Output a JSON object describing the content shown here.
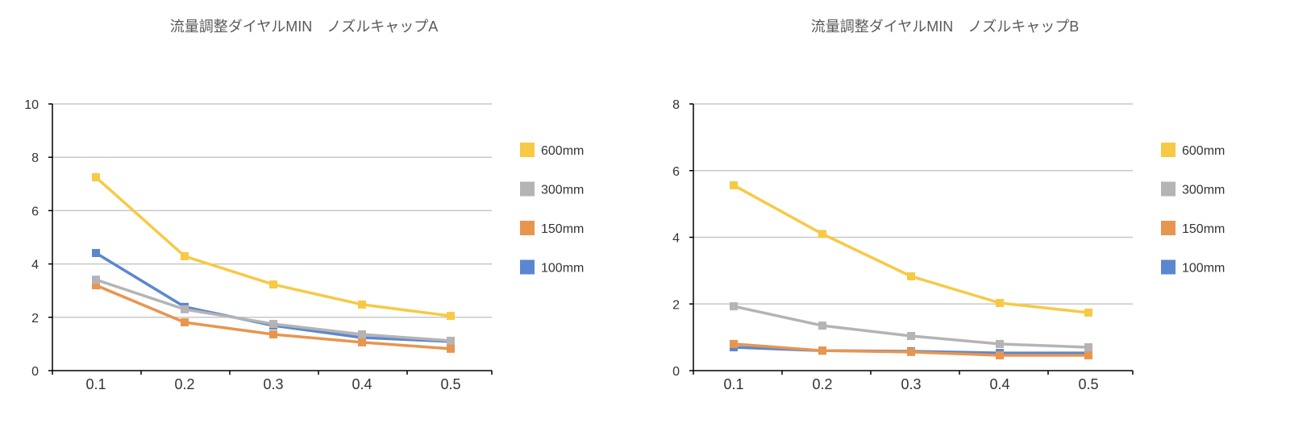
{
  "chart_data": [
    {
      "type": "line",
      "title": "流量調整ダイヤルMIN　ノズルキャップA",
      "categories": [
        "0.1",
        "0.2",
        "0.3",
        "0.4",
        "0.5"
      ],
      "ylim": [
        0,
        10
      ],
      "yticks": [
        0,
        2,
        4,
        6,
        8,
        10
      ],
      "grid": true,
      "legend": "right",
      "series": [
        {
          "name": "600mm",
          "color": "#f7c945",
          "values": [
            7.25,
            4.29,
            3.23,
            2.48,
            2.05
          ]
        },
        {
          "name": "300mm",
          "color": "#b4b4b4",
          "values": [
            3.41,
            2.3,
            1.75,
            1.36,
            1.12
          ]
        },
        {
          "name": "150mm",
          "color": "#e8954f",
          "values": [
            3.2,
            1.81,
            1.36,
            1.06,
            0.82
          ]
        },
        {
          "name": "100mm",
          "color": "#5b87d0",
          "values": [
            4.41,
            2.39,
            1.69,
            1.24,
            1.09
          ]
        }
      ]
    },
    {
      "type": "line",
      "title": "流量調整ダイヤルMIN　ノズルキャップB",
      "categories": [
        "0.1",
        "0.2",
        "0.3",
        "0.4",
        "0.5"
      ],
      "ylim": [
        0,
        8
      ],
      "yticks": [
        0,
        2,
        4,
        6,
        8
      ],
      "grid": true,
      "legend": "right",
      "series": [
        {
          "name": "600mm",
          "color": "#f7c945",
          "values": [
            5.56,
            4.1,
            2.83,
            2.03,
            1.74
          ]
        },
        {
          "name": "300mm",
          "color": "#b4b4b4",
          "values": [
            1.93,
            1.35,
            1.04,
            0.8,
            0.7
          ]
        },
        {
          "name": "150mm",
          "color": "#e8954f",
          "values": [
            0.8,
            0.6,
            0.56,
            0.46,
            0.46
          ]
        },
        {
          "name": "100mm",
          "color": "#5b87d0",
          "values": [
            0.7,
            0.6,
            0.58,
            0.53,
            0.53
          ]
        }
      ]
    }
  ]
}
